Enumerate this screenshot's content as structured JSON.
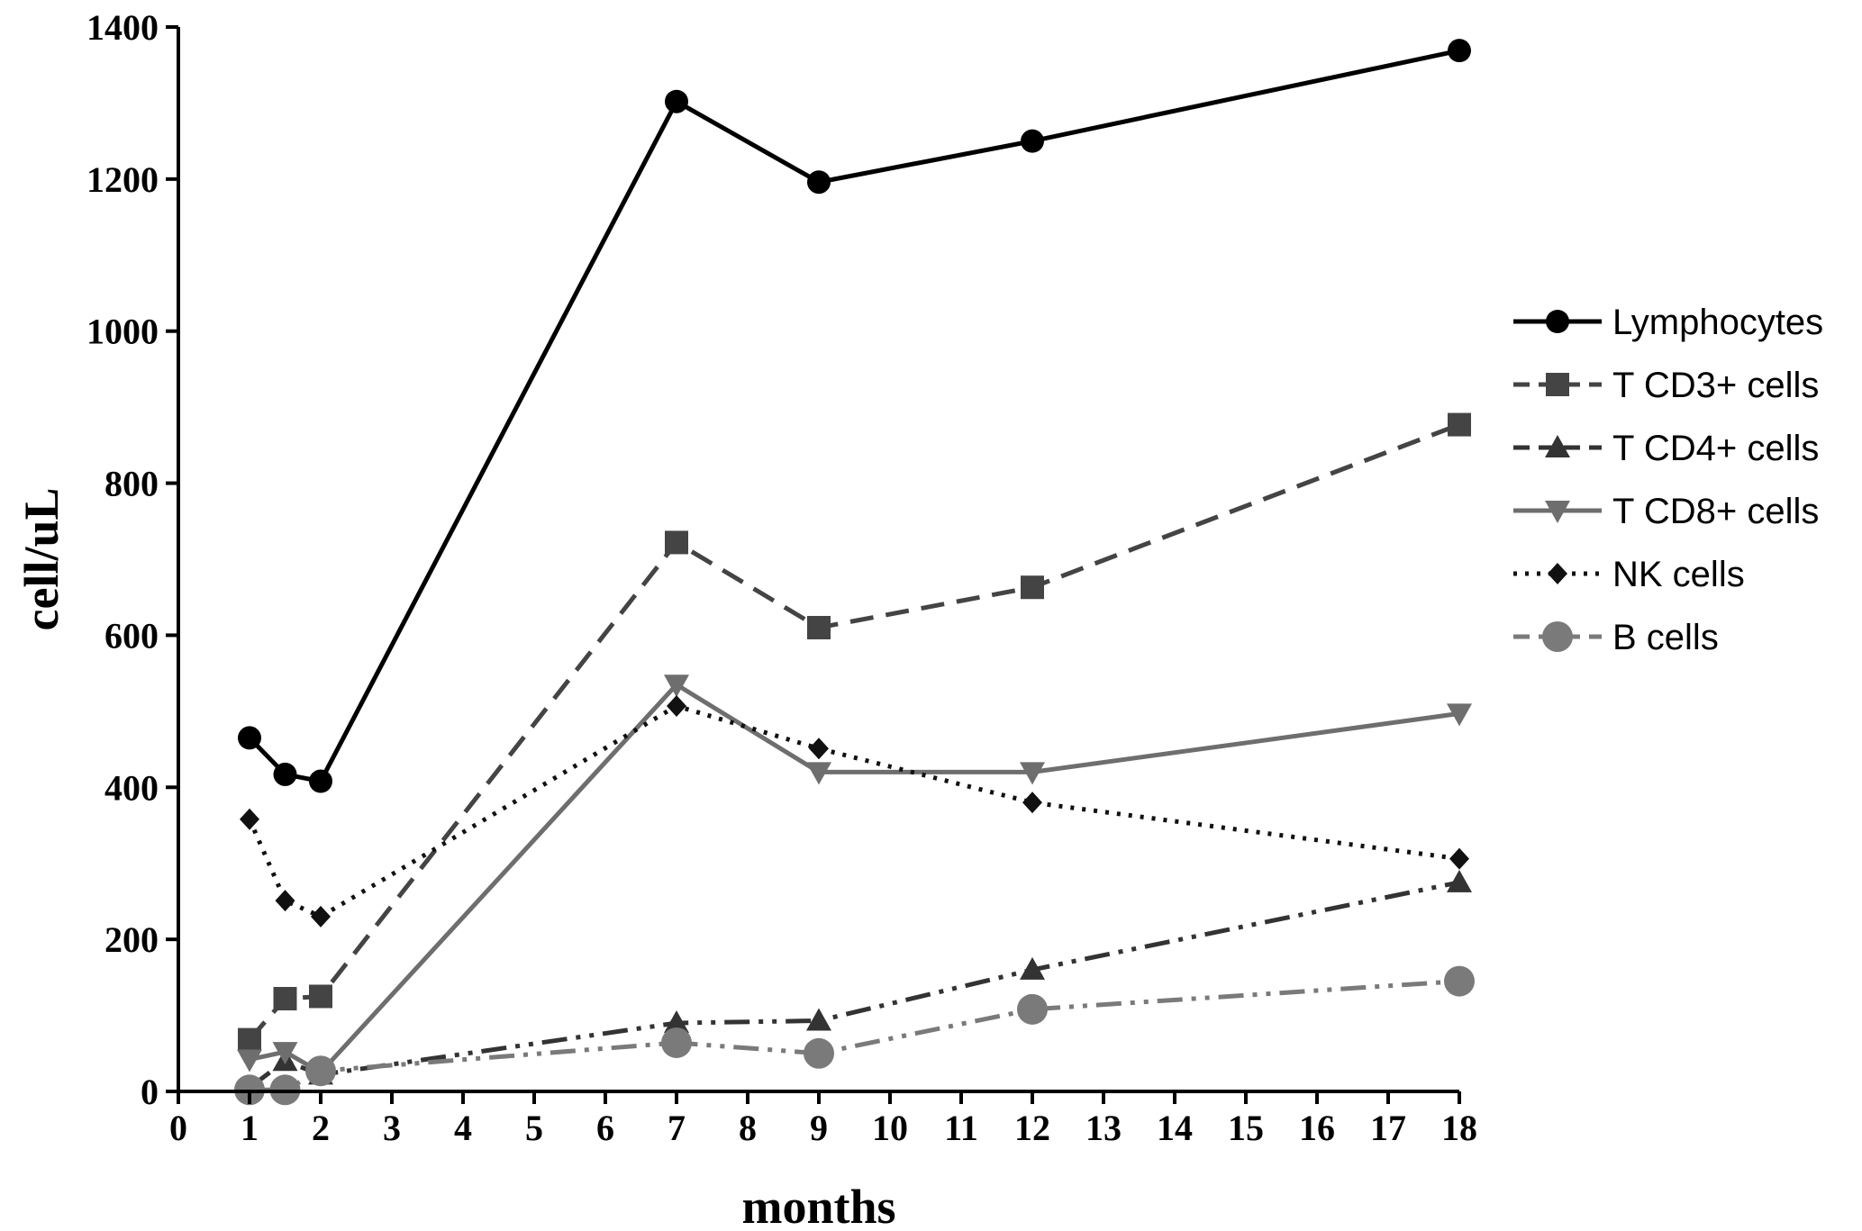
{
  "chart_data": {
    "type": "line",
    "xlabel": "months",
    "ylabel": "cell/uL",
    "xlim": [
      0,
      18
    ],
    "ylim": [
      0,
      1400
    ],
    "x_ticks": [
      "0",
      "1",
      "2",
      "3",
      "4",
      "5",
      "6",
      "7",
      "8",
      "9",
      "10",
      "11",
      "12",
      "13",
      "14",
      "15",
      "16",
      "17",
      "18"
    ],
    "y_ticks": [
      "0",
      "200",
      "400",
      "600",
      "800",
      "1000",
      "1200",
      "1400"
    ],
    "grid": false,
    "legend_position": "right",
    "series": [
      {
        "name": "Lymphocytes",
        "color": "#000000",
        "marker": "circle",
        "line_style": "solid",
        "x": [
          1,
          1.5,
          2,
          7,
          9,
          12,
          18
        ],
        "y": [
          465,
          417,
          408,
          1302,
          1196,
          1250,
          1369
        ]
      },
      {
        "name": "T CD3+ cells",
        "color": "#444444",
        "marker": "square",
        "line_style": "dashed",
        "x": [
          1,
          1.5,
          2,
          7,
          9,
          12,
          18
        ],
        "y": [
          68,
          122,
          125,
          722,
          610,
          663,
          877
        ]
      },
      {
        "name": "T CD4+ cells",
        "color": "#333333",
        "marker": "triangle-up",
        "line_style": "dash-dot-dot",
        "x": [
          1,
          1.5,
          2,
          7,
          9,
          12,
          18
        ],
        "y": [
          5,
          40,
          22,
          90,
          93,
          160,
          275
        ]
      },
      {
        "name": "T CD8+ cells",
        "color": "#6e6e6e",
        "marker": "triangle-down",
        "line_style": "solid",
        "x": [
          1,
          1.5,
          2,
          7,
          9,
          12,
          18
        ],
        "y": [
          42,
          52,
          25,
          535,
          420,
          420,
          497
        ]
      },
      {
        "name": "NK cells",
        "color": "#111111",
        "marker": "diamond",
        "line_style": "dotted",
        "x": [
          1,
          1.5,
          2,
          7,
          9,
          12,
          18
        ],
        "y": [
          358,
          251,
          230,
          507,
          451,
          380,
          306
        ]
      },
      {
        "name": "B cells",
        "color": "#7a7a7a",
        "marker": "circle-large",
        "line_style": "dash-dot-dot",
        "x": [
          1,
          1.5,
          2,
          7,
          9,
          12,
          18
        ],
        "y": [
          2,
          2,
          27,
          64,
          50,
          108,
          145
        ]
      }
    ]
  }
}
